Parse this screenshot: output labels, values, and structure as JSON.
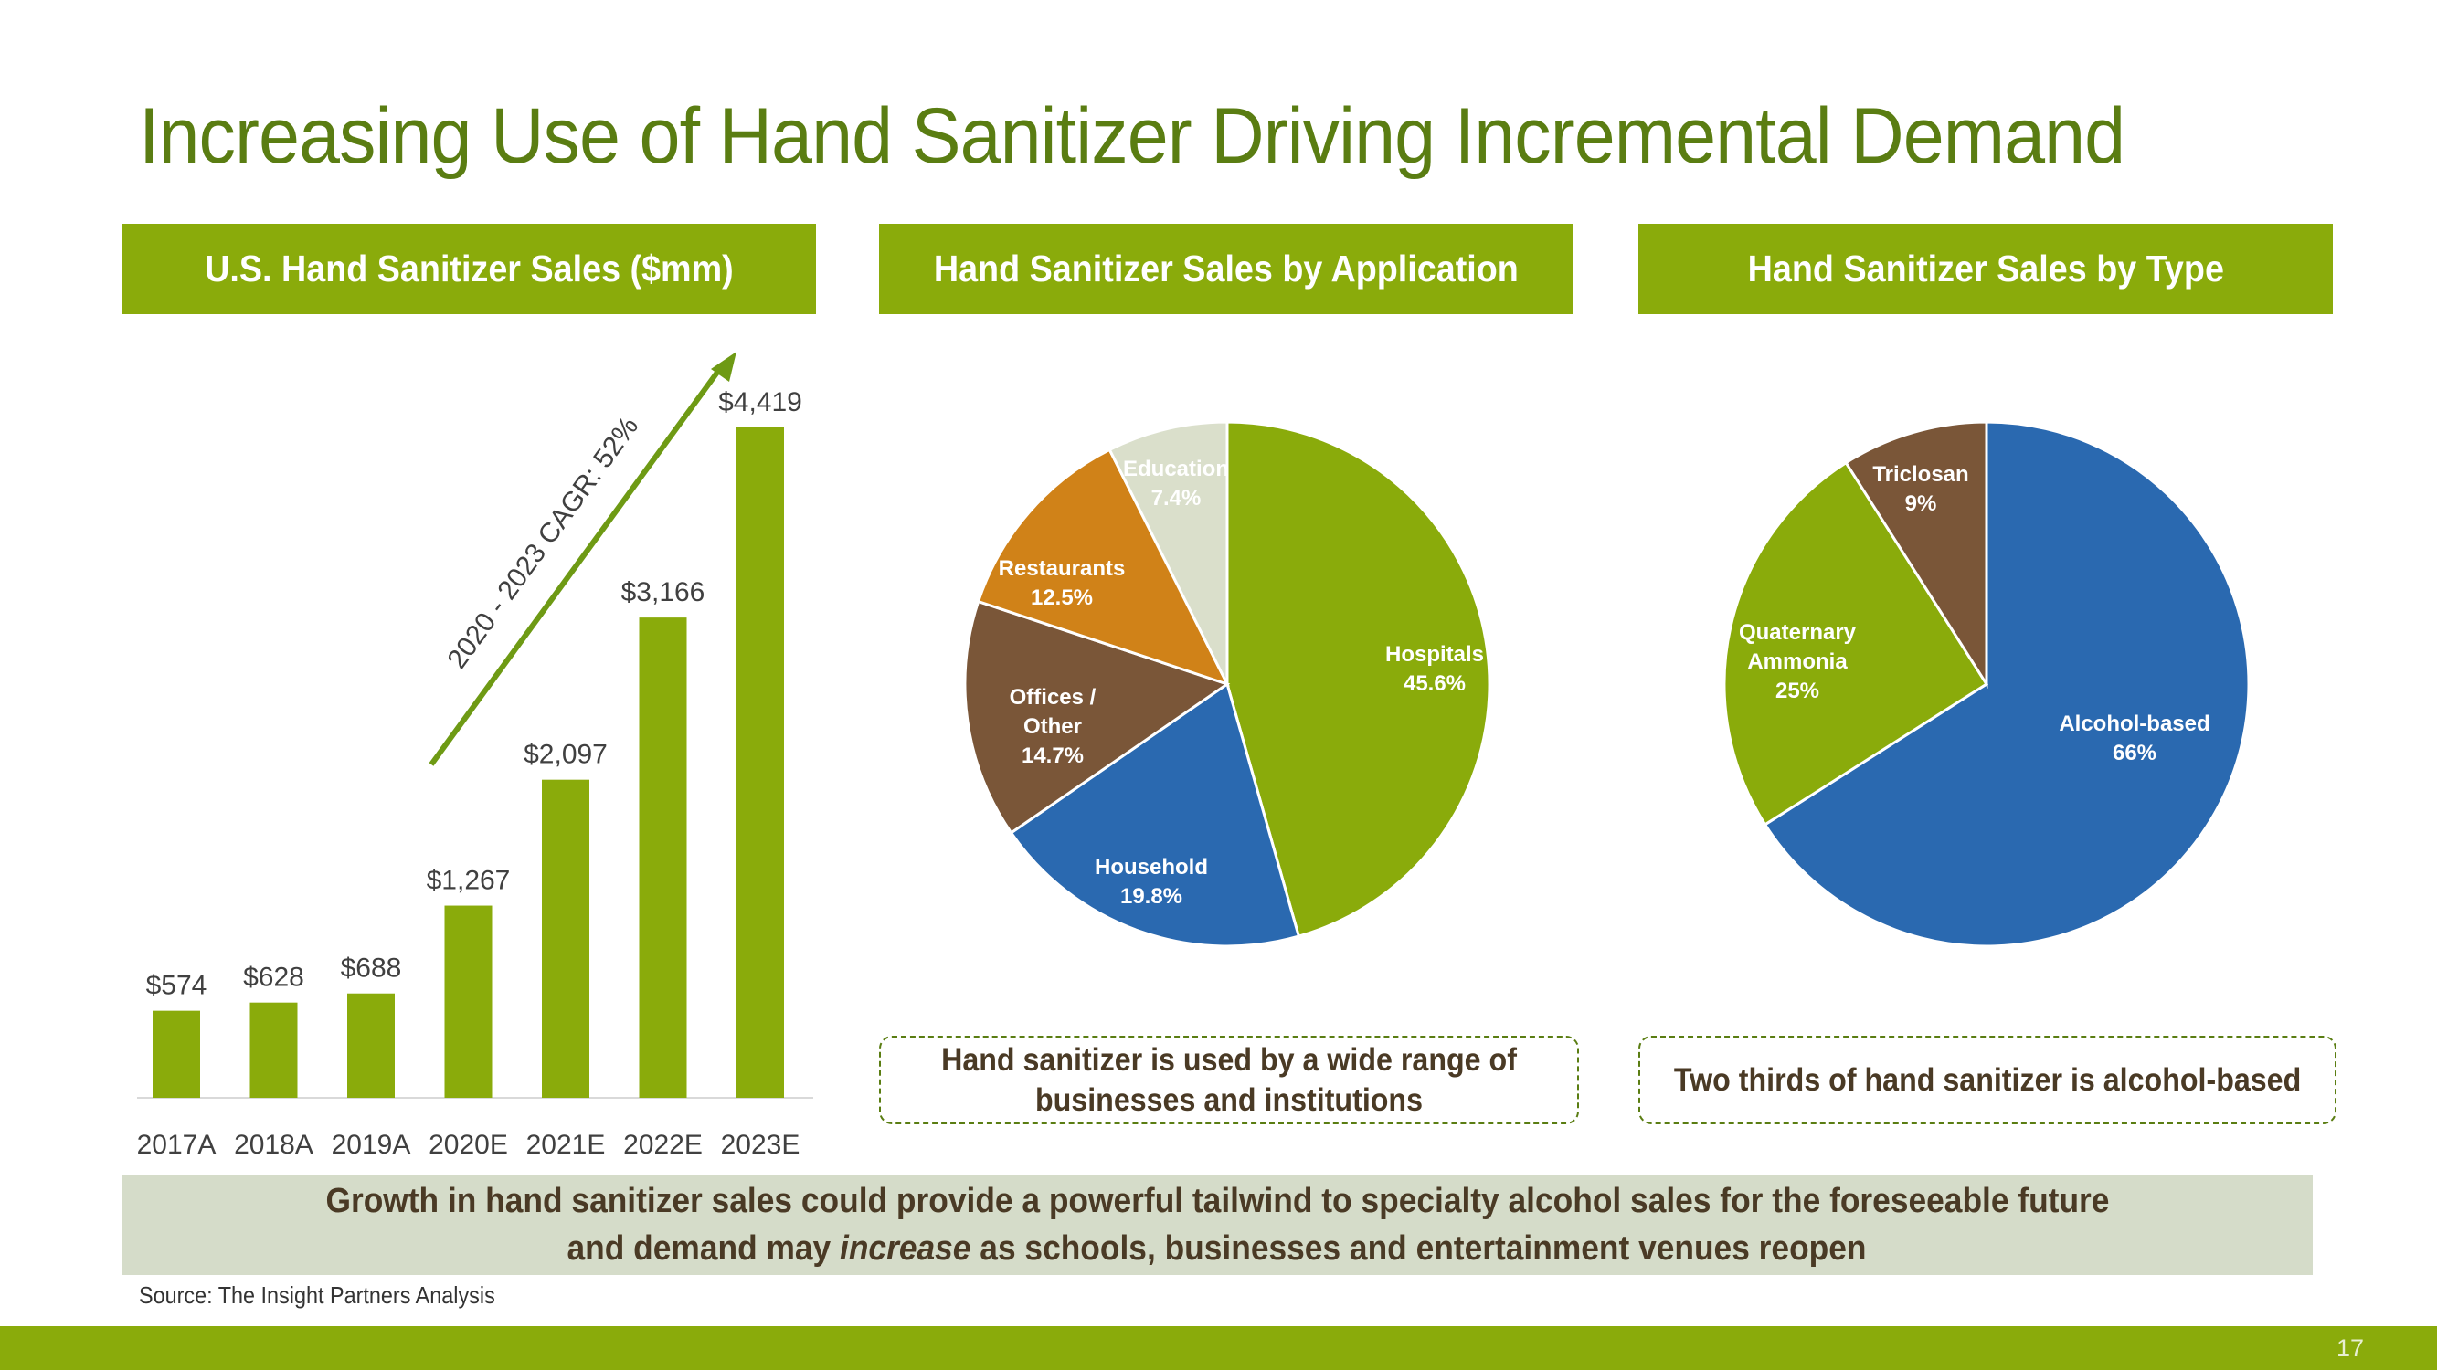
{
  "title": "Increasing Use of Hand Sanitizer Driving Incremental Demand",
  "panels": {
    "sales_header": "U.S. Hand Sanitizer Sales ($mm)",
    "application_header": "Hand Sanitizer Sales by Application",
    "type_header": "Hand Sanitizer Sales by Type"
  },
  "callouts": {
    "application": "Hand sanitizer is used by a wide range of businesses and institutions",
    "type": "Two thirds of hand sanitizer is alcohol-based"
  },
  "summary": {
    "line1": "Growth in hand sanitizer sales could provide a powerful tailwind to specialty alcohol sales for the foreseeable future",
    "line2_before": "and demand may ",
    "line2_emphasis": "increase",
    "line2_after": " as schools, businesses and entertainment venues reopen"
  },
  "source": "Source: The Insight Partners Analysis",
  "page_number": "17",
  "colors": {
    "accent": "#8aab0b",
    "title_green": "#5a7d12",
    "blue": "#2a69b0",
    "brown": "#7a5638",
    "orange": "#d08218",
    "pale": "#dadfcb"
  },
  "chart_data": [
    {
      "type": "bar",
      "title": "U.S. Hand Sanitizer Sales ($mm)",
      "categories": [
        "2017A",
        "2018A",
        "2019A",
        "2020E",
        "2021E",
        "2022E",
        "2023E"
      ],
      "values": [
        574,
        628,
        688,
        1267,
        2097,
        3166,
        4419
      ],
      "value_labels": [
        "$574",
        "$628",
        "$688",
        "$1,267",
        "$2,097",
        "$3,166",
        "$4,419"
      ],
      "annotation": "2020 - 2023 CAGR: 52%",
      "ylim": [
        0,
        4419
      ],
      "xlabel": "",
      "ylabel": ""
    },
    {
      "type": "pie",
      "title": "Hand Sanitizer Sales by Application",
      "slices": [
        {
          "label": "Hospitals",
          "value": 45.6,
          "display": "45.6%",
          "color": "#8aab0b"
        },
        {
          "label": "Household",
          "value": 19.8,
          "display": "19.8%",
          "color": "#2a69b0"
        },
        {
          "label": "Offices / Other",
          "value": 14.7,
          "display": "14.7%",
          "color": "#7a5638"
        },
        {
          "label": "Restaurants",
          "value": 12.5,
          "display": "12.5%",
          "color": "#d08218"
        },
        {
          "label": "Education",
          "value": 7.4,
          "display": "7.4%",
          "color": "#dadfcb"
        }
      ]
    },
    {
      "type": "pie",
      "title": "Hand Sanitizer Sales by Type",
      "slices": [
        {
          "label": "Alcohol-based",
          "value": 66,
          "display": "66%",
          "color": "#2a69b0"
        },
        {
          "label": "Quaternary Ammonia",
          "value": 25,
          "display": "25%",
          "color": "#8aab0b"
        },
        {
          "label": "Triclosan",
          "value": 9,
          "display": "9%",
          "color": "#7a5638"
        }
      ]
    }
  ]
}
